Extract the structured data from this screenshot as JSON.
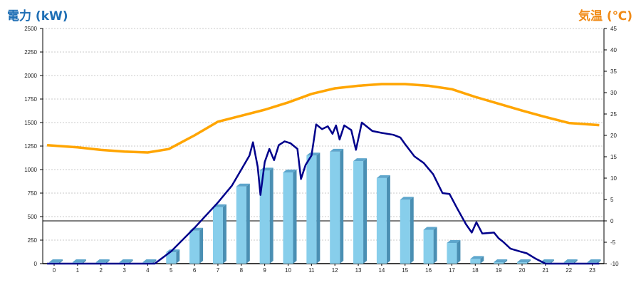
{
  "header": {
    "left_axis_title": "電力 (kW)",
    "right_axis_title": "気温 (℃)"
  },
  "chart_data": {
    "type": "bar",
    "categories": [
      "0",
      "1",
      "2",
      "3",
      "4",
      "5",
      "6",
      "7",
      "8",
      "9",
      "10",
      "11",
      "12",
      "13",
      "14",
      "15",
      "16",
      "17",
      "18",
      "19",
      "20",
      "21",
      "22",
      "23"
    ],
    "series": [
      {
        "kind": "bar",
        "axis": "left",
        "values": [
          0,
          0,
          0,
          0,
          0,
          120,
          350,
          600,
          820,
          990,
          970,
          1150,
          1190,
          1090,
          910,
          680,
          360,
          220,
          50,
          0,
          0,
          0,
          0,
          0
        ],
        "color": "#87ceeb"
      },
      {
        "kind": "line",
        "axis": "left",
        "color": "#00008b",
        "points": [
          [
            -0.3,
            0
          ],
          [
            4.3,
            0
          ],
          [
            5,
            130
          ],
          [
            6,
            380
          ],
          [
            7,
            650
          ],
          [
            7.6,
            830
          ],
          [
            8,
            1000
          ],
          [
            8.35,
            1150
          ],
          [
            8.5,
            1290
          ],
          [
            8.7,
            1030
          ],
          [
            8.82,
            730
          ],
          [
            9.0,
            1080
          ],
          [
            9.2,
            1220
          ],
          [
            9.4,
            1100
          ],
          [
            9.6,
            1260
          ],
          [
            9.85,
            1300
          ],
          [
            10.1,
            1280
          ],
          [
            10.4,
            1220
          ],
          [
            10.55,
            900
          ],
          [
            10.75,
            1050
          ],
          [
            11.0,
            1150
          ],
          [
            11.2,
            1480
          ],
          [
            11.45,
            1430
          ],
          [
            11.7,
            1460
          ],
          [
            11.9,
            1380
          ],
          [
            12.05,
            1470
          ],
          [
            12.2,
            1320
          ],
          [
            12.4,
            1470
          ],
          [
            12.7,
            1420
          ],
          [
            12.9,
            1210
          ],
          [
            13.15,
            1500
          ],
          [
            13.6,
            1410
          ],
          [
            14.0,
            1390
          ],
          [
            14.5,
            1370
          ],
          [
            14.8,
            1340
          ],
          [
            15.0,
            1270
          ],
          [
            15.4,
            1140
          ],
          [
            15.8,
            1070
          ],
          [
            16.2,
            950
          ],
          [
            16.6,
            750
          ],
          [
            16.9,
            740
          ],
          [
            17.2,
            600
          ],
          [
            17.6,
            420
          ],
          [
            17.85,
            330
          ],
          [
            18.05,
            440
          ],
          [
            18.3,
            320
          ],
          [
            18.8,
            330
          ],
          [
            19.0,
            270
          ],
          [
            19.2,
            230
          ],
          [
            19.5,
            160
          ],
          [
            19.9,
            130
          ],
          [
            20.2,
            110
          ],
          [
            20.6,
            50
          ],
          [
            21.0,
            0
          ],
          [
            23.3,
            0
          ]
        ]
      },
      {
        "kind": "line",
        "axis": "right",
        "color": "#ffa500",
        "points": [
          [
            -0.3,
            17.7
          ],
          [
            1,
            17.2
          ],
          [
            2,
            16.6
          ],
          [
            3,
            16.2
          ],
          [
            4,
            16.0
          ],
          [
            4.9,
            16.8
          ],
          [
            6,
            20.0
          ],
          [
            7,
            23.2
          ],
          [
            8,
            24.6
          ],
          [
            9,
            26.0
          ],
          [
            10,
            27.7
          ],
          [
            11,
            29.7
          ],
          [
            12,
            31.0
          ],
          [
            13,
            31.6
          ],
          [
            14,
            32.0
          ],
          [
            15,
            32.0
          ],
          [
            16,
            31.6
          ],
          [
            17,
            30.8
          ],
          [
            18,
            29.0
          ],
          [
            19,
            27.4
          ],
          [
            20,
            25.8
          ],
          [
            21,
            24.3
          ],
          [
            22,
            22.9
          ],
          [
            23.3,
            22.4
          ]
        ]
      }
    ],
    "y_left": {
      "min": 0,
      "max": 2500,
      "ticks": [
        "0",
        "250",
        "500",
        "750",
        "1000",
        "1250",
        "1500",
        "1750",
        "2000",
        "2250",
        "2500"
      ]
    },
    "y_right": {
      "min": -10,
      "max": 45,
      "ticks": [
        "-10",
        "-5",
        "0",
        "5",
        "10",
        "15",
        "20",
        "25",
        "30",
        "35",
        "40",
        "45"
      ]
    },
    "zero_line_right": 0,
    "grid": true,
    "grid_color": "#c8c8c8"
  }
}
